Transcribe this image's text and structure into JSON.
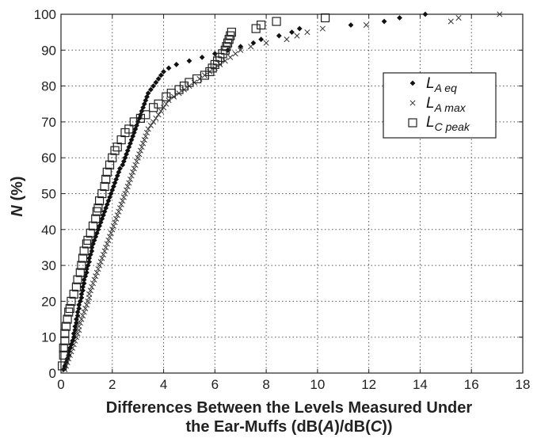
{
  "chart_data": {
    "type": "scatter",
    "title": "",
    "xlabel_line1": "Differences Between the Levels Measured Under",
    "xlabel_line2_pre": "the Ear-Muffs (dB(",
    "xlabel_line2_a": "A",
    "xlabel_line2_mid": ")/dB(",
    "xlabel_line2_c": "C",
    "xlabel_line2_post": "))",
    "ylabel_italic": "N",
    "ylabel_rest": " (%)",
    "xlim": [
      0,
      18
    ],
    "ylim": [
      0,
      100
    ],
    "xticks": [
      0,
      2,
      4,
      6,
      8,
      10,
      12,
      14,
      16,
      18
    ],
    "yticks": [
      0,
      10,
      20,
      30,
      40,
      50,
      60,
      70,
      80,
      90,
      100
    ],
    "grid": true,
    "legend_position": "right",
    "series": [
      {
        "name_main": "L",
        "name_sub": "A eq",
        "marker": "diamond",
        "points": [
          [
            0.1,
            1
          ],
          [
            0.15,
            2
          ],
          [
            0.2,
            3
          ],
          [
            0.25,
            4
          ],
          [
            0.3,
            5
          ],
          [
            0.3,
            6
          ],
          [
            0.35,
            7
          ],
          [
            0.4,
            8
          ],
          [
            0.45,
            9
          ],
          [
            0.5,
            10
          ],
          [
            0.5,
            11
          ],
          [
            0.55,
            12
          ],
          [
            0.55,
            13
          ],
          [
            0.6,
            14
          ],
          [
            0.6,
            15
          ],
          [
            0.65,
            16
          ],
          [
            0.65,
            17
          ],
          [
            0.7,
            18
          ],
          [
            0.7,
            19
          ],
          [
            0.75,
            20
          ],
          [
            0.8,
            21
          ],
          [
            0.8,
            22
          ],
          [
            0.85,
            23
          ],
          [
            0.85,
            24
          ],
          [
            0.9,
            25
          ],
          [
            0.9,
            26
          ],
          [
            0.95,
            27
          ],
          [
            1.0,
            28
          ],
          [
            1.0,
            29
          ],
          [
            1.05,
            30
          ],
          [
            1.1,
            31
          ],
          [
            1.1,
            32
          ],
          [
            1.15,
            33
          ],
          [
            1.2,
            34
          ],
          [
            1.2,
            35
          ],
          [
            1.25,
            36
          ],
          [
            1.3,
            37
          ],
          [
            1.35,
            38
          ],
          [
            1.4,
            39
          ],
          [
            1.45,
            40
          ],
          [
            1.5,
            41
          ],
          [
            1.55,
            42
          ],
          [
            1.6,
            43
          ],
          [
            1.65,
            44
          ],
          [
            1.7,
            45
          ],
          [
            1.75,
            46
          ],
          [
            1.8,
            47
          ],
          [
            1.85,
            48
          ],
          [
            1.9,
            49
          ],
          [
            1.95,
            50
          ],
          [
            2.0,
            51
          ],
          [
            2.05,
            52
          ],
          [
            2.1,
            53
          ],
          [
            2.15,
            54
          ],
          [
            2.2,
            55
          ],
          [
            2.25,
            56
          ],
          [
            2.3,
            57
          ],
          [
            2.4,
            58
          ],
          [
            2.45,
            59
          ],
          [
            2.5,
            60
          ],
          [
            2.55,
            61
          ],
          [
            2.6,
            62
          ],
          [
            2.65,
            63
          ],
          [
            2.7,
            64
          ],
          [
            2.75,
            65
          ],
          [
            2.8,
            66
          ],
          [
            2.85,
            67
          ],
          [
            2.9,
            68
          ],
          [
            2.95,
            69
          ],
          [
            3.0,
            70
          ],
          [
            3.05,
            71
          ],
          [
            3.1,
            72
          ],
          [
            3.15,
            73
          ],
          [
            3.2,
            74
          ],
          [
            3.25,
            75
          ],
          [
            3.3,
            76
          ],
          [
            3.35,
            77
          ],
          [
            3.4,
            78
          ],
          [
            3.5,
            79
          ],
          [
            3.6,
            80
          ],
          [
            3.7,
            81
          ],
          [
            3.8,
            82
          ],
          [
            3.9,
            83
          ],
          [
            4.0,
            84
          ],
          [
            4.2,
            85
          ],
          [
            4.5,
            86
          ],
          [
            5.0,
            87
          ],
          [
            5.5,
            88
          ],
          [
            6.0,
            89
          ],
          [
            6.5,
            90
          ],
          [
            7.0,
            91
          ],
          [
            7.5,
            92
          ],
          [
            7.8,
            93
          ],
          [
            8.5,
            94
          ],
          [
            9.0,
            95
          ],
          [
            9.3,
            96
          ],
          [
            11.3,
            97
          ],
          [
            12.6,
            98
          ],
          [
            13.2,
            99
          ],
          [
            14.2,
            100
          ]
        ]
      },
      {
        "name_main": "L",
        "name_sub": "A max",
        "marker": "x",
        "points": [
          [
            0.15,
            1
          ],
          [
            0.2,
            2
          ],
          [
            0.25,
            3
          ],
          [
            0.3,
            4
          ],
          [
            0.35,
            5
          ],
          [
            0.4,
            6
          ],
          [
            0.45,
            7
          ],
          [
            0.5,
            8
          ],
          [
            0.55,
            9
          ],
          [
            0.6,
            10
          ],
          [
            0.65,
            11
          ],
          [
            0.7,
            12
          ],
          [
            0.7,
            13
          ],
          [
            0.75,
            14
          ],
          [
            0.8,
            15
          ],
          [
            0.85,
            16
          ],
          [
            0.9,
            17
          ],
          [
            0.95,
            18
          ],
          [
            1.0,
            19
          ],
          [
            1.05,
            20
          ],
          [
            1.1,
            21
          ],
          [
            1.1,
            22
          ],
          [
            1.15,
            23
          ],
          [
            1.2,
            24
          ],
          [
            1.25,
            25
          ],
          [
            1.3,
            26
          ],
          [
            1.35,
            27
          ],
          [
            1.4,
            28
          ],
          [
            1.45,
            29
          ],
          [
            1.5,
            30
          ],
          [
            1.55,
            31
          ],
          [
            1.6,
            32
          ],
          [
            1.65,
            33
          ],
          [
            1.7,
            34
          ],
          [
            1.75,
            35
          ],
          [
            1.8,
            36
          ],
          [
            1.85,
            37
          ],
          [
            1.9,
            38
          ],
          [
            1.95,
            39
          ],
          [
            2.0,
            40
          ],
          [
            2.05,
            41
          ],
          [
            2.1,
            42
          ],
          [
            2.15,
            43
          ],
          [
            2.2,
            44
          ],
          [
            2.25,
            45
          ],
          [
            2.3,
            46
          ],
          [
            2.35,
            47
          ],
          [
            2.4,
            48
          ],
          [
            2.45,
            49
          ],
          [
            2.5,
            50
          ],
          [
            2.55,
            51
          ],
          [
            2.6,
            52
          ],
          [
            2.65,
            53
          ],
          [
            2.7,
            54
          ],
          [
            2.75,
            55
          ],
          [
            2.8,
            56
          ],
          [
            2.85,
            57
          ],
          [
            2.9,
            58
          ],
          [
            2.95,
            59
          ],
          [
            3.0,
            60
          ],
          [
            3.05,
            61
          ],
          [
            3.1,
            62
          ],
          [
            3.15,
            63
          ],
          [
            3.2,
            64
          ],
          [
            3.25,
            65
          ],
          [
            3.3,
            66
          ],
          [
            3.35,
            67
          ],
          [
            3.4,
            68
          ],
          [
            3.5,
            69
          ],
          [
            3.6,
            70
          ],
          [
            3.7,
            71
          ],
          [
            3.8,
            72
          ],
          [
            3.9,
            73
          ],
          [
            4.0,
            74
          ],
          [
            4.1,
            75
          ],
          [
            4.2,
            76
          ],
          [
            4.4,
            77
          ],
          [
            4.6,
            78
          ],
          [
            4.8,
            79
          ],
          [
            5.0,
            80
          ],
          [
            5.2,
            81
          ],
          [
            5.4,
            82
          ],
          [
            5.6,
            83
          ],
          [
            5.8,
            84
          ],
          [
            6.0,
            85
          ],
          [
            6.2,
            86
          ],
          [
            6.4,
            87
          ],
          [
            6.6,
            88
          ],
          [
            6.8,
            89
          ],
          [
            7.0,
            90
          ],
          [
            7.4,
            91
          ],
          [
            8.0,
            92
          ],
          [
            8.8,
            93
          ],
          [
            9.2,
            94
          ],
          [
            9.6,
            95
          ],
          [
            10.2,
            96
          ],
          [
            11.9,
            97
          ],
          [
            15.2,
            98
          ],
          [
            15.5,
            99
          ],
          [
            17.1,
            100
          ]
        ]
      },
      {
        "name_main": "L",
        "name_sub": "C peak",
        "marker": "square",
        "points": [
          [
            0.05,
            2
          ],
          [
            0.1,
            5
          ],
          [
            0.1,
            7
          ],
          [
            0.15,
            9
          ],
          [
            0.15,
            11
          ],
          [
            0.2,
            13
          ],
          [
            0.25,
            15
          ],
          [
            0.3,
            17
          ],
          [
            0.35,
            18
          ],
          [
            0.4,
            20
          ],
          [
            0.5,
            22
          ],
          [
            0.6,
            24
          ],
          [
            0.65,
            26
          ],
          [
            0.75,
            28
          ],
          [
            0.8,
            30
          ],
          [
            0.85,
            32
          ],
          [
            0.9,
            34
          ],
          [
            1.0,
            36
          ],
          [
            1.05,
            37
          ],
          [
            1.15,
            39
          ],
          [
            1.25,
            41
          ],
          [
            1.35,
            43
          ],
          [
            1.4,
            45
          ],
          [
            1.45,
            46
          ],
          [
            1.5,
            48
          ],
          [
            1.6,
            50
          ],
          [
            1.7,
            52
          ],
          [
            1.75,
            54
          ],
          [
            1.8,
            56
          ],
          [
            1.9,
            58
          ],
          [
            2.0,
            60
          ],
          [
            2.1,
            62
          ],
          [
            2.2,
            63
          ],
          [
            2.35,
            65
          ],
          [
            2.5,
            67
          ],
          [
            2.65,
            68
          ],
          [
            2.85,
            70
          ],
          [
            3.1,
            71
          ],
          [
            3.3,
            72
          ],
          [
            3.6,
            74
          ],
          [
            3.8,
            75
          ],
          [
            4.1,
            77
          ],
          [
            4.3,
            78
          ],
          [
            4.6,
            79
          ],
          [
            4.8,
            80
          ],
          [
            5.0,
            81
          ],
          [
            5.3,
            82
          ],
          [
            5.6,
            83
          ],
          [
            5.8,
            84
          ],
          [
            5.9,
            85
          ],
          [
            6.0,
            86
          ],
          [
            6.1,
            87
          ],
          [
            6.2,
            88
          ],
          [
            6.3,
            89
          ],
          [
            6.4,
            90
          ],
          [
            6.45,
            91
          ],
          [
            6.5,
            92
          ],
          [
            6.55,
            93
          ],
          [
            6.6,
            94
          ],
          [
            6.65,
            95
          ],
          [
            7.6,
            96
          ],
          [
            7.8,
            97
          ],
          [
            8.4,
            98
          ],
          [
            10.3,
            99
          ]
        ]
      }
    ]
  }
}
